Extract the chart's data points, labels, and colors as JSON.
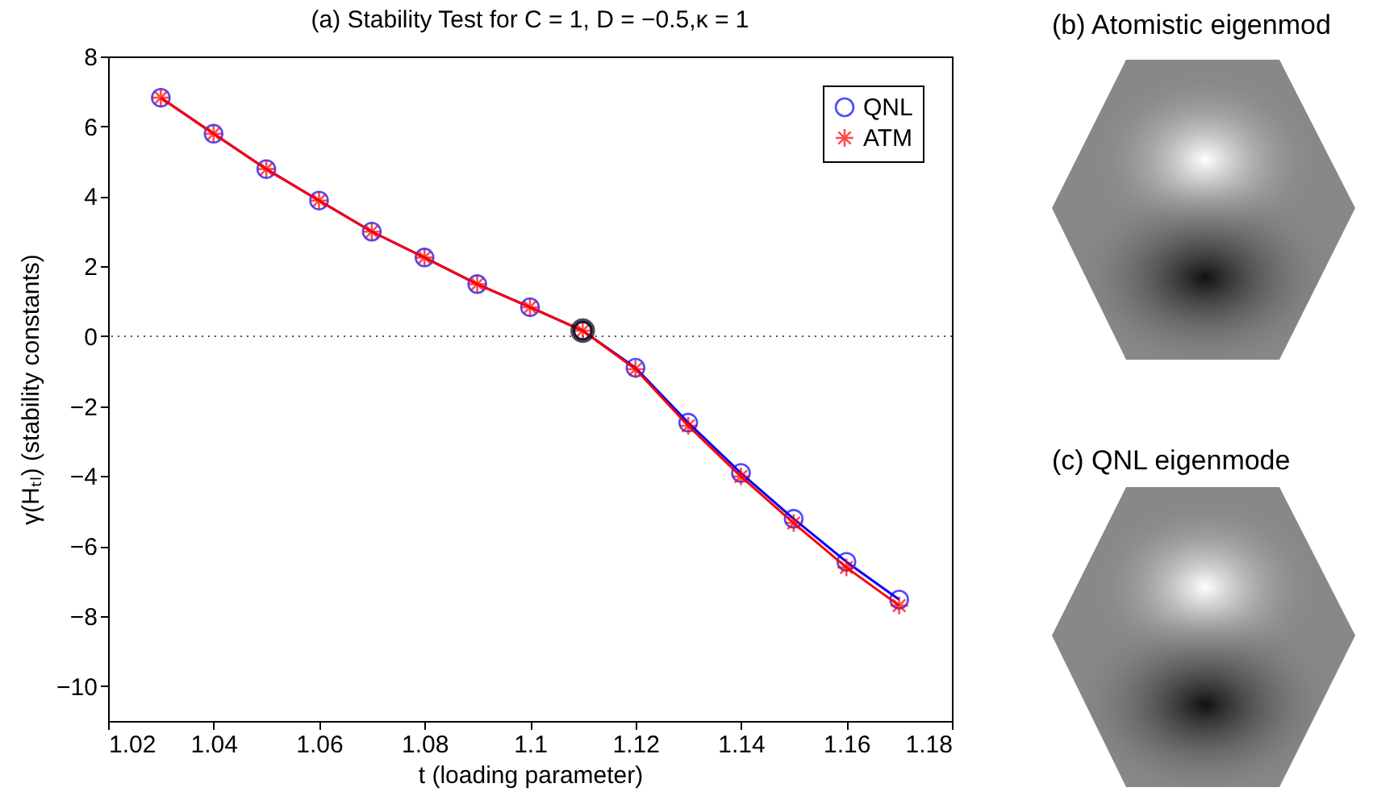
{
  "chart_data": {
    "type": "line",
    "title": "(a) Stability Test for C = 1, D = −0.5,κ = 1",
    "xlabel": "t  (loading parameter)",
    "ylabel": "γ(Hₜₗ)   (stability constants)",
    "x": [
      1.03,
      1.04,
      1.05,
      1.06,
      1.07,
      1.08,
      1.09,
      1.1,
      1.11,
      1.12,
      1.13,
      1.14,
      1.15,
      1.16,
      1.17
    ],
    "series": [
      {
        "name": "QNL",
        "color": "#0000ff",
        "marker": "circle",
        "values": [
          6.82,
          5.79,
          4.78,
          3.88,
          2.99,
          2.25,
          1.49,
          0.83,
          0.16,
          -0.9,
          -2.47,
          -3.91,
          -5.22,
          -6.45,
          -7.53
        ]
      },
      {
        "name": "ATM",
        "color": "#ff0000",
        "marker": "cross",
        "values": [
          6.82,
          5.79,
          4.78,
          3.88,
          2.99,
          2.25,
          1.49,
          0.83,
          0.16,
          -0.94,
          -2.56,
          -4.01,
          -5.34,
          -6.61,
          -7.7
        ]
      },
      {
        "type": "scatter",
        "color": "#000000",
        "marker": "circle",
        "x": [
          1.11
        ],
        "values": [
          0.16
        ]
      }
    ],
    "xlim": [
      1.02,
      1.18
    ],
    "xticks": [
      1.02,
      1.04,
      1.06,
      1.08,
      1.1,
      1.12,
      1.14,
      1.16,
      1.18
    ],
    "ylim": [
      -11,
      8
    ],
    "yticks": [
      {
        "value": -10,
        "label": "−10"
      },
      {
        "value": -8,
        "label": "−8"
      },
      {
        "value": -6,
        "label": "−6"
      },
      {
        "value": -4,
        "label": "−4"
      },
      {
        "value": -2,
        "label": "−2"
      },
      0,
      2,
      4,
      6,
      8
    ],
    "ref_lines": [
      {
        "axis": "y",
        "value": 0,
        "color": "#555555",
        "line_style": "dotted"
      }
    ],
    "legend": "top right",
    "annotations": [
      "(b) Atomistic eigenmod",
      "(c) QNL eigenmode"
    ]
  }
}
